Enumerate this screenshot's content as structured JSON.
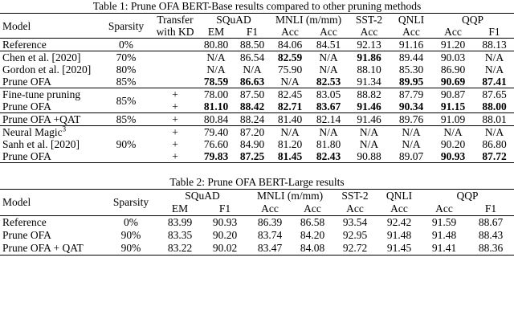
{
  "table1": {
    "caption": "Table 1: Prune OFA BERT-Base results compared to other pruning methods",
    "header": {
      "model": "Model",
      "sparsity": "Sparsity",
      "kd": [
        "Transfer",
        "with KD"
      ],
      "tasks": [
        {
          "name": "SQuAD",
          "metrics": [
            "EM",
            "F1"
          ]
        },
        {
          "name": "MNLI (m/mm)",
          "metrics": [
            "Acc",
            "Acc"
          ]
        },
        {
          "name": "SST-2",
          "metrics": [
            "Acc"
          ]
        },
        {
          "name": "QNLI",
          "metrics": [
            "Acc"
          ]
        },
        {
          "name": "QQP",
          "metrics": [
            "Acc",
            "F1"
          ]
        }
      ]
    },
    "groups": [
      {
        "rows": [
          {
            "model": "Reference",
            "sparsity": "0%",
            "cells": [
              "80.80",
              "88.50",
              "84.06",
              "84.51",
              "92.13",
              "91.16",
              "91.20",
              "88.13"
            ],
            "bold": []
          }
        ]
      },
      {
        "rows": [
          {
            "model": "Chen et al. [2020]",
            "sparsity": "70%",
            "cells": [
              "N/A",
              "86.54",
              "82.59",
              "N/A",
              "91.86",
              "89.44",
              "90.03",
              "N/A"
            ],
            "bold": [
              2,
              4
            ]
          },
          {
            "model": "Gordon et al. [2020]",
            "sparsity": "80%",
            "cells": [
              "N/A",
              "N/A",
              "75.90",
              "N/A",
              "88.10",
              "85.30",
              "86.90",
              "N/A"
            ],
            "bold": []
          },
          {
            "model": "Prune OFA",
            "sparsity": "85%",
            "cells": [
              "78.59",
              "86.63",
              "N/A",
              "82.53",
              "91.34",
              "89.95",
              "90.69",
              "87.41"
            ],
            "bold": [
              0,
              1,
              3,
              5,
              6,
              7
            ]
          }
        ]
      },
      {
        "sparsity": "85%",
        "rows": [
          {
            "model": "Fine-tune pruning",
            "kd": "+",
            "cells": [
              "78.00",
              "87.50",
              "82.45",
              "83.05",
              "88.82",
              "87.79",
              "90.87",
              "87.65"
            ],
            "bold": []
          },
          {
            "model": "Prune OFA",
            "kd": "+",
            "cells": [
              "81.10",
              "88.42",
              "82.71",
              "83.67",
              "91.46",
              "90.34",
              "91.15",
              "88.00"
            ],
            "bold": [
              0,
              1,
              2,
              3,
              4,
              5,
              6,
              7
            ]
          }
        ]
      },
      {
        "rows": [
          {
            "model": "Prune OFA +QAT",
            "sparsity": "85%",
            "kd": "+",
            "cells": [
              "80.84",
              "88.24",
              "81.40",
              "82.14",
              "91.46",
              "89.76",
              "91.09",
              "88.01"
            ],
            "bold": []
          }
        ]
      },
      {
        "sparsity": "90%",
        "rows": [
          {
            "model": "Neural Magic",
            "sup": "3",
            "kd": "+",
            "cells": [
              "79.40",
              "87.20",
              "N/A",
              "N/A",
              "N/A",
              "N/A",
              "N/A",
              "N/A"
            ],
            "bold": []
          },
          {
            "model": "Sanh et al. [2020]",
            "kd": "+",
            "cells": [
              "76.60",
              "84.90",
              "81.20",
              "81.80",
              "N/A",
              "N/A",
              "90.20",
              "86.80"
            ],
            "bold": []
          },
          {
            "model": "Prune OFA",
            "kd": "+",
            "cells": [
              "79.83",
              "87.25",
              "81.45",
              "82.43",
              "90.88",
              "89.07",
              "90.93",
              "87.72"
            ],
            "bold": [
              0,
              1,
              2,
              3,
              6,
              7
            ]
          }
        ]
      }
    ]
  },
  "table2": {
    "caption": "Table 2: Prune OFA BERT-Large results",
    "header": {
      "model": "Model",
      "sparsity": "Sparsity",
      "tasks": [
        {
          "name": "SQuAD",
          "metrics": [
            "EM",
            "F1"
          ]
        },
        {
          "name": "MNLI (m/mm)",
          "metrics": [
            "Acc",
            "Acc"
          ]
        },
        {
          "name": "SST-2",
          "metrics": [
            "Acc"
          ]
        },
        {
          "name": "QNLI",
          "metrics": [
            "Acc"
          ]
        },
        {
          "name": "QQP",
          "metrics": [
            "Acc",
            "F1"
          ]
        }
      ]
    },
    "groups": [
      {
        "rows": [
          {
            "model": "Reference",
            "sparsity": "0%",
            "cells": [
              "83.99",
              "90.93",
              "86.39",
              "86.58",
              "93.54",
              "92.42",
              "91.59",
              "88.67"
            ],
            "bold": []
          },
          {
            "model": "Prune OFA",
            "sparsity": "90%",
            "cells": [
              "83.35",
              "90.20",
              "83.74",
              "84.20",
              "92.95",
              "91.48",
              "91.48",
              "88.43"
            ],
            "bold": []
          },
          {
            "model": "Prune OFA + QAT",
            "sparsity": "90%",
            "cells": [
              "83.22",
              "90.02",
              "83.47",
              "84.08",
              "92.72",
              "91.45",
              "91.41",
              "88.36"
            ],
            "bold": []
          }
        ]
      }
    ]
  }
}
